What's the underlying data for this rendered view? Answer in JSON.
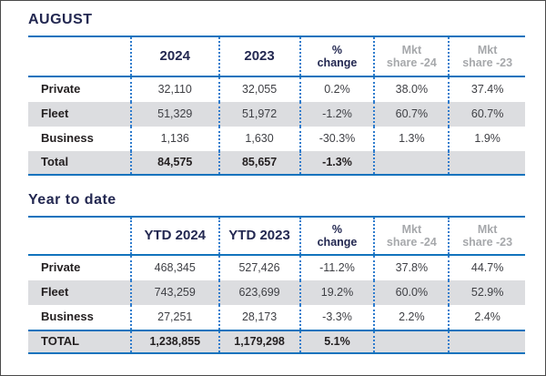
{
  "colors": {
    "navy_text": "#232851",
    "blue_rule": "#1273bd",
    "dotted_separator": "#2f7ccd",
    "row_band_gray": "#dcdde0",
    "header_gray_text": "#a6a8ab",
    "label_text": "#231f20",
    "value_text": "#3e3f44"
  },
  "chart_data": [
    {
      "type": "table",
      "title": "AUGUST",
      "columns": [
        "",
        "2024",
        "2023",
        "% change",
        "Mkt share -24",
        "Mkt share -23"
      ],
      "header_lines": [
        [
          "",
          ""
        ],
        [
          "2024",
          ""
        ],
        [
          "2023",
          ""
        ],
        [
          "%",
          "change"
        ],
        [
          "Mkt",
          "share -24"
        ],
        [
          "Mkt",
          "share -23"
        ]
      ],
      "rows": [
        [
          "Private",
          "32,110",
          "32,055",
          "0.2%",
          "38.0%",
          "37.4%"
        ],
        [
          "Fleet",
          "51,329",
          "51,972",
          "-1.2%",
          "60.7%",
          "60.7%"
        ],
        [
          "Business",
          "1,136",
          "1,630",
          "-30.3%",
          "1.3%",
          "1.9%"
        ],
        [
          "Total",
          "84,575",
          "85,657",
          "-1.3%",
          "",
          ""
        ]
      ]
    },
    {
      "type": "table",
      "title": "Year to date",
      "columns": [
        "",
        "YTD 2024",
        "YTD 2023",
        "% change",
        "Mkt share -24",
        "Mkt share -23"
      ],
      "header_lines": [
        [
          "",
          ""
        ],
        [
          "YTD 2024",
          ""
        ],
        [
          "YTD 2023",
          ""
        ],
        [
          "%",
          "change"
        ],
        [
          "Mkt",
          "share -24"
        ],
        [
          "Mkt",
          "share -23"
        ]
      ],
      "rows": [
        [
          "Private",
          "468,345",
          "527,426",
          "-11.2%",
          "37.8%",
          "44.7%"
        ],
        [
          "Fleet",
          "743,259",
          "623,699",
          "19.2%",
          "60.0%",
          "52.9%"
        ],
        [
          "Business",
          "27,251",
          "28,173",
          "-3.3%",
          "2.2%",
          "2.4%"
        ],
        [
          "TOTAL",
          "1,238,855",
          "1,179,298",
          "5.1%",
          "",
          ""
        ]
      ]
    }
  ]
}
